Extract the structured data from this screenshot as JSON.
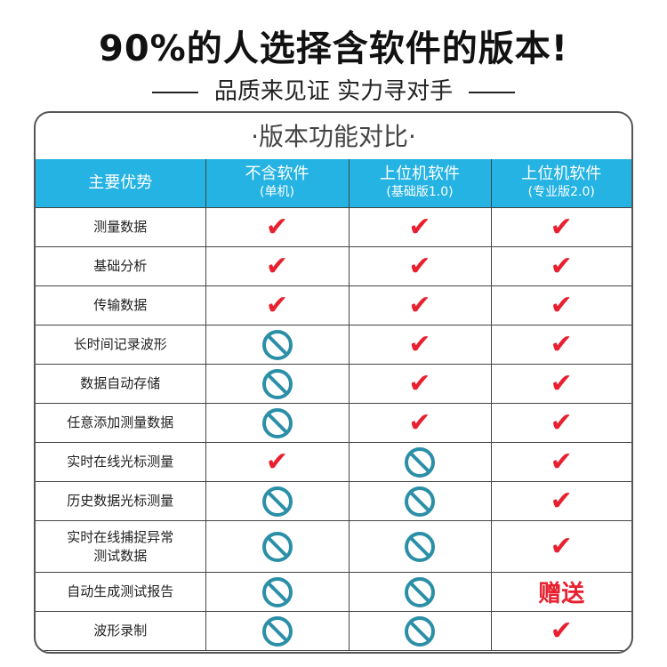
{
  "headline": "90%的人选择含软件的版本!",
  "subheadline": "品质来见证 实力寻对手",
  "table_title": "·版本功能对比·",
  "columns": [
    {
      "title": "主要优势",
      "sub": ""
    },
    {
      "title": "不含软件",
      "sub": "(单机)"
    },
    {
      "title": "上位机软件",
      "sub": "(基础版1.0)"
    },
    {
      "title": "上位机软件",
      "sub": "(专业版2.0)"
    }
  ],
  "colors": {
    "header": "#25b3e3",
    "check": "#e8202f",
    "no": "#2a8fa7"
  },
  "rows": [
    {
      "label": "测量数据",
      "cells": [
        "check",
        "check",
        "check"
      ]
    },
    {
      "label": "基础分析",
      "cells": [
        "check",
        "check",
        "check"
      ]
    },
    {
      "label": "传输数据",
      "cells": [
        "check",
        "check",
        "check"
      ]
    },
    {
      "label": "长时间记录波形",
      "cells": [
        "no",
        "check",
        "check"
      ]
    },
    {
      "label": "数据自动存储",
      "cells": [
        "no",
        "check",
        "check"
      ]
    },
    {
      "label": "任意添加测量数据",
      "cells": [
        "no",
        "check",
        "check"
      ]
    },
    {
      "label": "实时在线光标测量",
      "cells": [
        "check",
        "no",
        "check"
      ]
    },
    {
      "label": "历史数据光标测量",
      "cells": [
        "no",
        "no",
        "check"
      ]
    },
    {
      "label": "实时在线捕捉异常\n测试数据",
      "cells": [
        "no",
        "no",
        "check"
      ]
    },
    {
      "label": "自动生成测试报告",
      "cells": [
        "no",
        "no",
        "赠送"
      ]
    },
    {
      "label": "波形录制",
      "cells": [
        "no",
        "no",
        "check"
      ]
    }
  ]
}
